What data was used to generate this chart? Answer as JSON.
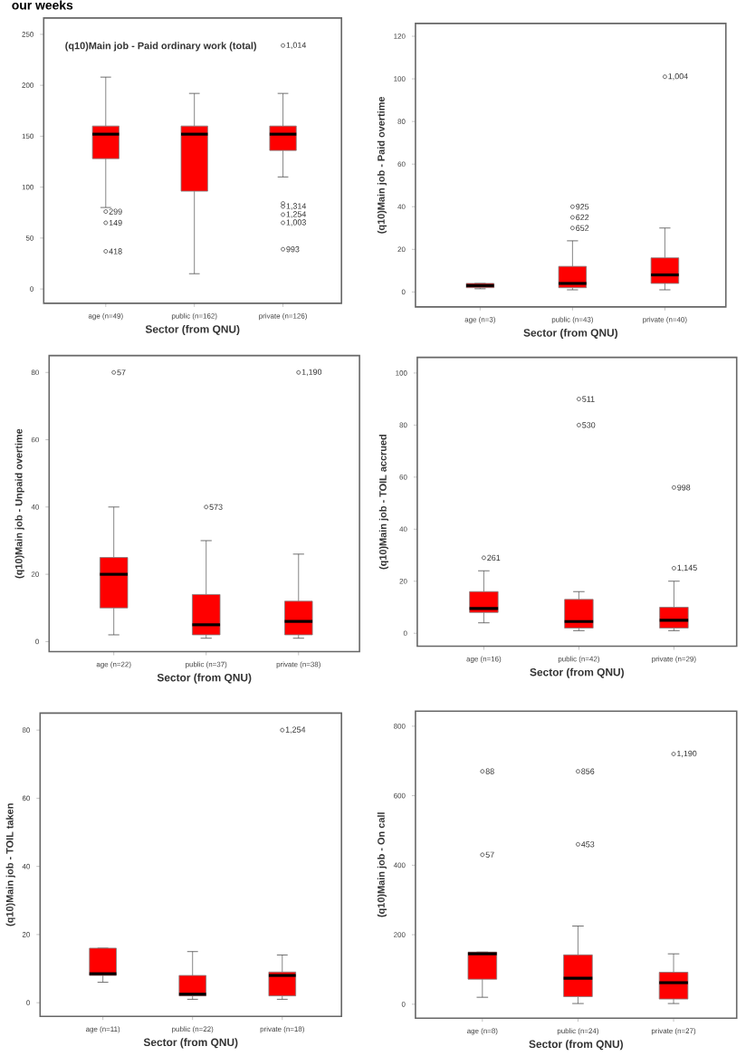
{
  "chart_data": [
    {
      "type": "box",
      "title": "(q10)Main job - Paid ordinary work (total)",
      "subtitle": "our weeks",
      "annotations": [
        "299",
        "149",
        "418",
        "1,014",
        "1,314",
        "1,254",
        "1,003",
        "993"
      ],
      "xlabel": "Sector (from QNU)",
      "categories": [
        "age (n=49)",
        "public (n=162)",
        "private (n=126)"
      ],
      "color": "#ff0000",
      "boxes": [
        {
          "low": 80,
          "q1": 128,
          "median": 152,
          "q3": 160,
          "high": 208,
          "outliers": [
            76,
            65,
            37
          ]
        },
        {
          "low": 15,
          "q1": 96,
          "median": 152,
          "q3": 160,
          "high": 192
        },
        {
          "low": 110,
          "q1": 136,
          "median": 152,
          "q3": 160,
          "high": 192,
          "outliers": [
            239,
            81,
            73,
            65,
            39,
            84
          ]
        }
      ],
      "ylim": [
        -14,
        266
      ],
      "yticks": [
        0,
        50,
        100,
        150,
        200,
        250
      ]
    },
    {
      "type": "box",
      "ylabel": "(q10)Main job - Paid overtime",
      "xlabel": "Sector (from QNU)",
      "categories": [
        "age (n=3)",
        "public (n=43)",
        "private (n=40)"
      ],
      "color": "#ff0000",
      "annotations": [
        "925",
        "622",
        "652",
        "1,004"
      ],
      "boxes": [
        {
          "low": 1.5,
          "q1": 2,
          "median": 3,
          "q3": 4,
          "high": 4
        },
        {
          "low": 1,
          "q1": 2,
          "median": 4,
          "q3": 12,
          "high": 24,
          "outliers": [
            40,
            35,
            30
          ]
        },
        {
          "low": 1,
          "q1": 4,
          "median": 8,
          "q3": 16,
          "high": 30,
          "outliers": [
            101
          ]
        }
      ],
      "ylim": [
        -7,
        126
      ],
      "yticks": [
        0,
        20,
        40,
        60,
        80,
        100,
        120
      ]
    },
    {
      "type": "box",
      "ylabel": "(q10)Main job - Unpaid overtime",
      "xlabel": "Sector (from QNU)",
      "categories": [
        "age (n=22)",
        "public (n=37)",
        "private (n=38)"
      ],
      "color": "#ff0000",
      "annotations": [
        "57",
        "573",
        "1,190"
      ],
      "boxes": [
        {
          "low": 2,
          "q1": 10,
          "median": 20,
          "q3": 25,
          "high": 40,
          "outliers": [
            80
          ]
        },
        {
          "low": 1,
          "q1": 2,
          "median": 5,
          "q3": 14,
          "high": 30,
          "outliers": [
            40
          ]
        },
        {
          "low": 1,
          "q1": 2,
          "median": 6,
          "q3": 12,
          "high": 26,
          "outliers": [
            80
          ]
        }
      ],
      "ylim": [
        -3,
        85
      ],
      "yticks": [
        0,
        20,
        40,
        60,
        80
      ]
    },
    {
      "type": "box",
      "ylabel": "(q10)Main job - TOIL accrued",
      "xlabel": "Sector (from QNU)",
      "categories": [
        "age (n=16)",
        "public (n=42)",
        "private (n=29)"
      ],
      "color": "#ff0000",
      "annotations": [
        "261",
        "511",
        "530",
        "998",
        "1,145"
      ],
      "boxes": [
        {
          "low": 4,
          "q1": 8,
          "median": 9.5,
          "q3": 16,
          "high": 24,
          "outliers": [
            29
          ]
        },
        {
          "low": 1,
          "q1": 2,
          "median": 4.5,
          "q3": 13,
          "high": 16,
          "outliers": [
            90,
            80
          ]
        },
        {
          "low": 1,
          "q1": 2,
          "median": 5,
          "q3": 10,
          "high": 20,
          "outliers": [
            56,
            25
          ]
        }
      ],
      "ylim": [
        -5,
        106
      ],
      "yticks": [
        0,
        20,
        40,
        60,
        80,
        100
      ]
    },
    {
      "type": "box",
      "ylabel": "(q10)Main job - TOIL taken",
      "xlabel": "Sector (from QNU)",
      "categories": [
        "age (n=11)",
        "public (n=22)",
        "private (n=18)"
      ],
      "color": "#ff0000",
      "annotations": [
        "1,254"
      ],
      "boxes": [
        {
          "low": 6,
          "q1": 8,
          "median": 8.5,
          "q3": 16,
          "high": 16
        },
        {
          "low": 1,
          "q1": 2,
          "median": 2.5,
          "q3": 8,
          "high": 15
        },
        {
          "low": 1,
          "q1": 2,
          "median": 8,
          "q3": 9,
          "high": 14,
          "outliers": [
            80
          ]
        }
      ],
      "ylim": [
        -4,
        85
      ],
      "yticks": [
        0,
        20,
        40,
        60,
        80
      ]
    },
    {
      "type": "box",
      "ylabel": "(q10)Main job - On call",
      "xlabel": "Sector (from QNU)",
      "categories": [
        "age (n=8)",
        "public (n=24)",
        "private (n=27)"
      ],
      "color": "#ff0000",
      "annotations": [
        "88",
        "57",
        "856",
        "453",
        "1,190"
      ],
      "boxes": [
        {
          "low": 20,
          "q1": 72,
          "median": 145,
          "q3": 150,
          "high": 150,
          "outliers": [
            670,
            430
          ]
        },
        {
          "low": 2,
          "q1": 22,
          "median": 75,
          "q3": 142,
          "high": 225,
          "outliers": [
            670,
            460
          ]
        },
        {
          "low": 2,
          "q1": 15,
          "median": 62,
          "q3": 92,
          "high": 145,
          "outliers": [
            720
          ]
        }
      ],
      "ylim": [
        -40,
        843
      ],
      "yticks": [
        0,
        200,
        400,
        600,
        800
      ]
    }
  ]
}
